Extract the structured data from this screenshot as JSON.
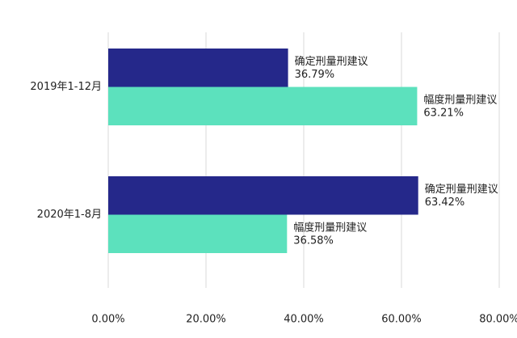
{
  "chart_data": {
    "type": "barh",
    "categories": [
      "2019年1-12月",
      "2020年1-8月"
    ],
    "series": [
      {
        "name": "确定刑量刑建议",
        "color": "#25288a",
        "values": [
          36.79,
          63.42
        ],
        "value_labels": [
          "36.79%",
          "63.42%"
        ]
      },
      {
        "name": "幅度刑量刑建议",
        "color": "#5ce1bd",
        "values": [
          63.21,
          36.58
        ],
        "value_labels": [
          "63.21%",
          "36.58%"
        ]
      }
    ],
    "xlim": [
      0,
      80
    ],
    "xticks": [
      {
        "value": 0,
        "label": "0.00%"
      },
      {
        "value": 20,
        "label": "20.00%"
      },
      {
        "value": 40,
        "label": "40.00%"
      },
      {
        "value": 60,
        "label": "60.00%"
      },
      {
        "value": 80,
        "label": "80.00%"
      }
    ],
    "grid": true
  }
}
